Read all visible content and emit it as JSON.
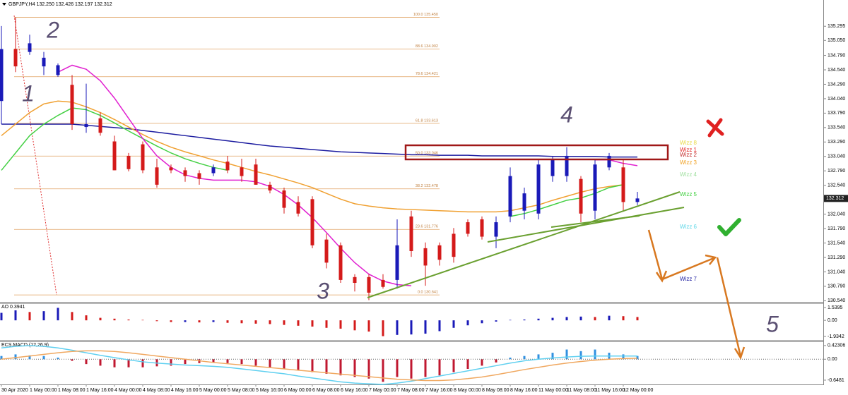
{
  "chart_data": [
    {
      "type": "candlestick",
      "title": "GBPJPY,H4 132.250 132.426 132.197 132.312",
      "categories": [
        "30 Apr 2020",
        null,
        "1 May 00:00",
        null,
        "1 May 08:00",
        null,
        "1 May 16:00",
        null,
        "4 May 00:00",
        null,
        "4 May 08:00",
        null,
        "4 May 16:00",
        null,
        "5 May 00:00",
        null,
        "5 May 08:00",
        null,
        "5 May 16:00",
        null,
        "6 May 00:00",
        null,
        "6 May 08:00",
        null,
        "6 May 16:00",
        null,
        "7 May 00:00",
        null,
        "7 May 08:00",
        null,
        "7 May 16:00",
        null,
        "8 May 00:00",
        null,
        "8 May 08:00",
        null,
        "8 May 16:00",
        null,
        "11 May 00:00",
        null,
        "11 May 08:00",
        null,
        "11 May 16:00",
        null,
        "12 May 00:00",
        null
      ],
      "open": [
        134.0,
        134.9,
        134.85,
        134.6,
        134.45,
        134.28,
        133.55,
        133.7,
        133.3,
        133.05,
        133.25,
        132.85,
        132.85,
        132.8,
        132.75,
        132.75,
        132.95,
        132.85,
        132.9,
        132.55,
        132.45,
        132.25,
        132.3,
        131.6,
        131.5,
        130.95,
        130.95,
        130.9,
        130.9,
        132.0,
        131.45,
        131.5,
        131.7,
        131.9,
        131.95,
        131.65,
        132.0,
        132.1,
        132.05,
        132.7,
        132.7,
        132.65,
        132.1,
        132.85,
        132.85,
        132.25
      ],
      "high": [
        135.3,
        135.45,
        135.15,
        134.85,
        134.65,
        134.45,
        134.3,
        133.8,
        133.4,
        133.1,
        133.3,
        133.0,
        132.9,
        132.85,
        132.8,
        132.9,
        133.05,
        133.0,
        133.0,
        132.6,
        132.5,
        132.35,
        132.35,
        131.7,
        131.55,
        131.0,
        131.0,
        131.0,
        131.95,
        132.1,
        131.55,
        131.55,
        131.8,
        131.95,
        132.0,
        132.0,
        132.85,
        132.5,
        133.0,
        133.05,
        133.2,
        132.7,
        133.0,
        133.1,
        133.0,
        132.426
      ],
      "low": [
        133.6,
        134.5,
        134.8,
        134.45,
        134.42,
        133.5,
        133.45,
        133.4,
        132.8,
        132.78,
        132.75,
        132.5,
        132.75,
        132.6,
        132.55,
        132.7,
        132.75,
        132.6,
        132.55,
        132.4,
        132.05,
        132.0,
        131.45,
        131.1,
        130.85,
        130.7,
        130.55,
        130.75,
        130.75,
        131.3,
        130.8,
        131.15,
        131.2,
        131.65,
        131.6,
        131.45,
        131.9,
        131.95,
        131.95,
        132.6,
        132.6,
        131.9,
        131.95,
        132.8,
        132.1,
        132.197
      ],
      "close": [
        134.9,
        134.6,
        135.0,
        134.75,
        134.62,
        133.6,
        133.6,
        133.45,
        132.8,
        132.82,
        132.8,
        132.55,
        132.8,
        132.7,
        132.65,
        132.85,
        132.8,
        132.7,
        132.55,
        132.45,
        132.15,
        132.05,
        131.5,
        131.2,
        130.9,
        130.85,
        130.68,
        130.78,
        131.5,
        131.4,
        131.15,
        131.25,
        131.3,
        131.7,
        131.65,
        131.9,
        132.7,
        132.4,
        132.9,
        133.0,
        133.05,
        132.05,
        132.9,
        133.05,
        132.25,
        132.312
      ],
      "up_color": "#1a1ab8",
      "down_color": "#d41a1a",
      "lines": [
        {
          "color": "#1c1ca0",
          "values": [
            133.6,
            133.6,
            133.6,
            133.6,
            133.6,
            133.6,
            133.58,
            133.56,
            133.54,
            133.52,
            133.49,
            133.46,
            133.43,
            133.4,
            133.37,
            133.34,
            133.31,
            133.28,
            133.25,
            133.22,
            133.2,
            133.18,
            133.16,
            133.14,
            133.12,
            133.11,
            133.1,
            133.09,
            133.08,
            133.07,
            133.07,
            133.06,
            133.06,
            133.06,
            133.05,
            133.05,
            133.05,
            133.05,
            133.05,
            133.04,
            133.04,
            133.04,
            133.04,
            133.03,
            133.03,
            133.03
          ]
        },
        {
          "color": "#f0a030",
          "values": [
            133.4,
            133.6,
            133.8,
            133.95,
            134.0,
            133.98,
            133.9,
            133.8,
            133.68,
            133.55,
            133.42,
            133.3,
            133.2,
            133.12,
            133.05,
            132.98,
            132.92,
            132.85,
            132.78,
            132.72,
            132.65,
            132.58,
            132.5,
            132.4,
            132.3,
            132.22,
            132.18,
            132.15,
            132.13,
            132.12,
            132.11,
            132.1,
            132.09,
            132.08,
            132.08,
            132.08,
            132.1,
            132.15,
            132.2,
            132.28,
            132.35,
            132.42,
            132.48,
            132.52,
            132.55,
            null
          ]
        },
        {
          "color": "#44d044",
          "values": [
            132.8,
            133.1,
            133.4,
            133.6,
            133.75,
            133.88,
            133.85,
            133.75,
            133.62,
            133.48,
            133.35,
            133.22,
            133.1,
            133.0,
            132.92,
            132.85,
            132.8,
            null,
            null,
            null,
            null,
            null,
            null,
            null,
            null,
            null,
            null,
            null,
            null,
            null,
            null,
            null,
            null,
            null,
            null,
            null,
            132.0,
            132.05,
            132.12,
            132.2,
            132.28,
            132.32,
            132.4,
            132.5,
            132.55,
            null
          ]
        },
        {
          "color": "#e020d0",
          "values": [
            null,
            null,
            null,
            null,
            134.5,
            134.62,
            134.55,
            134.35,
            134.05,
            133.7,
            133.35,
            133.05,
            132.85,
            132.72,
            132.66,
            132.63,
            132.63,
            132.63,
            132.6,
            132.52,
            132.38,
            132.2,
            131.98,
            131.72,
            131.45,
            131.2,
            131.0,
            130.88,
            130.82,
            130.8,
            null,
            null,
            null,
            null,
            null,
            null,
            null,
            null,
            null,
            null,
            null,
            null,
            132.98,
            132.98,
            132.92,
            132.88
          ]
        }
      ],
      "ylim": [
        130.52,
        135.75
      ],
      "yticks": [
        135.295,
        {
          "value": 135.05,
          "label": "135.050"
        },
        {
          "value": 134.79,
          "label": "134.790"
        },
        {
          "value": 134.54,
          "label": "134.540"
        },
        {
          "value": 134.29,
          "label": "134.290"
        },
        {
          "value": 134.04,
          "label": "134.040"
        },
        {
          "value": 133.79,
          "label": "133.790"
        },
        {
          "value": 133.54,
          "label": "133.540"
        },
        {
          "value": 133.29,
          "label": "133.290"
        },
        {
          "value": 133.04,
          "label": "133.040"
        },
        {
          "value": 132.79,
          "label": "132.790"
        },
        {
          "value": 132.54,
          "label": "132.540"
        },
        {
          "value": 132.04,
          "label": "132.040"
        },
        {
          "value": 131.79,
          "label": "131.790"
        },
        {
          "value": 131.54,
          "label": "131.540"
        },
        {
          "value": 131.29,
          "label": "131.290"
        },
        {
          "value": 131.04,
          "label": "131.040"
        },
        {
          "value": 130.79,
          "label": "130.790"
        },
        {
          "value": 130.54,
          "label": "130.540"
        }
      ],
      "current_price": 132.312,
      "fib_levels": [
        {
          "value": 135.45,
          "label": "100.0 135.450"
        },
        {
          "value": 134.902,
          "label": "88.6 134.902"
        },
        {
          "value": 134.421,
          "label": "78.6 134.421"
        },
        {
          "value": 133.613,
          "label": "61.8 133.613"
        },
        {
          "value": 133.046,
          "label": "50.0 133.046"
        },
        {
          "value": 132.478,
          "label": "38.2 132.478"
        },
        {
          "value": 131.776,
          "label": "23.6 131.776"
        },
        {
          "value": 130.641,
          "label": "0.0 130.641"
        }
      ],
      "fib_color": "#e0a060",
      "wave_labels": [
        "1",
        "2",
        "3",
        "4",
        "5"
      ],
      "legend": [
        {
          "text": "Wizz 8",
          "color": "#e8d840"
        },
        {
          "text": "Wizz 1",
          "color": "#e02020"
        },
        {
          "text": "Wizz 2",
          "color": "#c02828"
        },
        {
          "text": "Wizz 3",
          "color": "#f0a020"
        },
        {
          "text": "Wizz 4",
          "color": "#a0e0a0"
        },
        {
          "text": "Wizz 5",
          "color": "#40d040"
        },
        {
          "text": "Wizz 6",
          "color": "#60d8e8"
        },
        {
          "text": "Wizz 7",
          "color": "#2020a0"
        }
      ]
    },
    {
      "type": "bar",
      "title": "AO 0.3941",
      "values": [
        0.9,
        1.2,
        1.0,
        1.1,
        1.5,
        1.0,
        0.6,
        0.3,
        0.2,
        0.1,
        0.05,
        -0.1,
        -0.2,
        -0.2,
        -0.25,
        -0.2,
        -0.3,
        -0.35,
        -0.4,
        -0.45,
        -0.55,
        -0.65,
        -0.75,
        -0.9,
        -1.0,
        -1.2,
        -1.35,
        -1.9,
        -1.75,
        -1.7,
        -1.6,
        -1.3,
        -0.9,
        -0.6,
        -0.35,
        -0.15,
        0.05,
        0.1,
        0.2,
        0.3,
        0.4,
        0.45,
        0.4,
        0.55,
        0.5,
        0.4
      ],
      "up_color": "#1a1ab8",
      "down_color": "#d41a1a",
      "color_by": "change",
      "ylim": [
        -2.36,
        1.96
      ],
      "yticks": [
        1.5395,
        {
          "value": 0,
          "label": "0.00"
        },
        -1.9342
      ]
    },
    {
      "type": "bar",
      "title": "ECS.MACD (12,26,9)",
      "values": [
        0.1,
        0.15,
        0.12,
        0.1,
        0.05,
        -0.05,
        -0.15,
        -0.2,
        -0.25,
        -0.25,
        -0.25,
        -0.22,
        -0.2,
        -0.15,
        -0.12,
        -0.1,
        -0.12,
        -0.15,
        -0.2,
        -0.25,
        -0.3,
        -0.35,
        -0.4,
        -0.45,
        -0.5,
        -0.55,
        -0.6,
        -0.7,
        -0.55,
        -0.6,
        -0.55,
        -0.5,
        -0.4,
        -0.3,
        -0.2,
        -0.1,
        0.05,
        0.1,
        0.15,
        0.2,
        0.3,
        0.25,
        0.3,
        0.2,
        0.15,
        0.1
      ],
      "up_color": "#3090e0",
      "down_color": "#c01830",
      "color_by": "sign",
      "lines": [
        {
          "color": "#60d0f0",
          "values": [
            0.35,
            0.4,
            0.42,
            0.4,
            0.35,
            0.28,
            0.2,
            0.12,
            0.05,
            -0.02,
            -0.08,
            -0.12,
            -0.15,
            -0.18,
            -0.2,
            -0.22,
            -0.25,
            -0.3,
            -0.35,
            -0.4,
            -0.45,
            -0.52,
            -0.58,
            -0.64,
            -0.7,
            -0.74,
            -0.76,
            -0.78,
            -0.74,
            -0.68,
            -0.6,
            -0.52,
            -0.44,
            -0.36,
            -0.28,
            -0.2,
            -0.12,
            -0.05,
            0.0,
            0.04,
            0.07,
            0.09,
            0.1,
            0.1,
            0.1,
            0.1
          ]
        },
        {
          "color": "#f0a860",
          "values": [
            0.0,
            0.05,
            0.1,
            0.15,
            0.2,
            0.24,
            0.26,
            0.26,
            0.24,
            0.2,
            0.15,
            0.1,
            0.05,
            0.0,
            -0.05,
            -0.1,
            -0.14,
            -0.18,
            -0.22,
            -0.26,
            -0.3,
            -0.34,
            -0.38,
            -0.42,
            -0.46,
            -0.5,
            -0.54,
            -0.58,
            -0.62,
            -0.64,
            -0.66,
            -0.66,
            -0.64,
            -0.6,
            -0.55,
            -0.48,
            -0.4,
            -0.32,
            -0.25,
            -0.18,
            -0.12,
            -0.07,
            -0.03,
            0.0,
            0.02,
            0.03
          ]
        }
      ],
      "ylim": [
        -0.78,
        0.53
      ],
      "yticks": [
        0.42306,
        {
          "value": 0,
          "label": "0.00"
        },
        -0.6481
      ]
    }
  ]
}
